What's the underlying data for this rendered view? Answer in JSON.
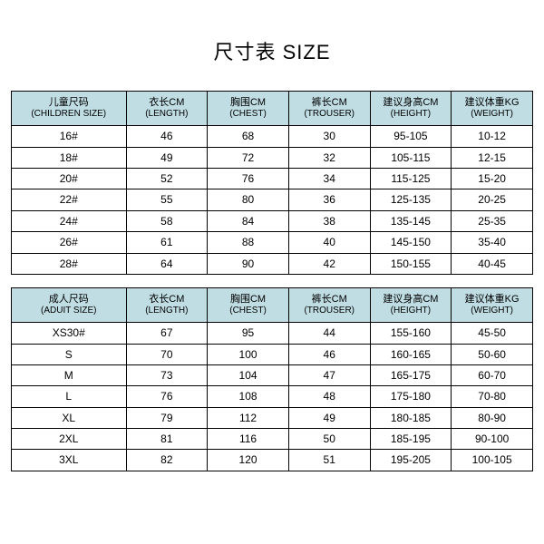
{
  "title": "尺寸表 SIZE",
  "colors": {
    "header_bg": "#bfdde3",
    "border": "#000000",
    "text": "#000000",
    "background": "#ffffff"
  },
  "children_table": {
    "headers": [
      {
        "cn": "儿童尺码",
        "en": "(CHILDREN SIZE)"
      },
      {
        "cn": "衣长CM",
        "en": "(LENGTH)"
      },
      {
        "cn": "胸围CM",
        "en": "(CHEST)"
      },
      {
        "cn": "裤长CM",
        "en": "(TROUSER)"
      },
      {
        "cn": "建议身高CM",
        "en": "(HEIGHT)"
      },
      {
        "cn": "建议体重KG",
        "en": "(WEIGHT)"
      }
    ],
    "rows": [
      [
        "16#",
        "46",
        "68",
        "30",
        "95-105",
        "10-12"
      ],
      [
        "18#",
        "49",
        "72",
        "32",
        "105-115",
        "12-15"
      ],
      [
        "20#",
        "52",
        "76",
        "34",
        "115-125",
        "15-20"
      ],
      [
        "22#",
        "55",
        "80",
        "36",
        "125-135",
        "20-25"
      ],
      [
        "24#",
        "58",
        "84",
        "38",
        "135-145",
        "25-35"
      ],
      [
        "26#",
        "61",
        "88",
        "40",
        "145-150",
        "35-40"
      ],
      [
        "28#",
        "64",
        "90",
        "42",
        "150-155",
        "40-45"
      ]
    ]
  },
  "adult_table": {
    "headers": [
      {
        "cn": "成人尺码",
        "en": "(ADUIT SIZE)"
      },
      {
        "cn": "衣长CM",
        "en": "(LENGTH)"
      },
      {
        "cn": "胸围CM",
        "en": "(CHEST)"
      },
      {
        "cn": "裤长CM",
        "en": "(TROUSER)"
      },
      {
        "cn": "建议身高CM",
        "en": "(HEIGHT)"
      },
      {
        "cn": "建议体重KG",
        "en": "(WEIGHT)"
      }
    ],
    "rows": [
      [
        "XS30#",
        "67",
        "95",
        "44",
        "155-160",
        "45-50"
      ],
      [
        "S",
        "70",
        "100",
        "46",
        "160-165",
        "50-60"
      ],
      [
        "M",
        "73",
        "104",
        "47",
        "165-175",
        "60-70"
      ],
      [
        "L",
        "76",
        "108",
        "48",
        "175-180",
        "70-80"
      ],
      [
        "XL",
        "79",
        "112",
        "49",
        "180-185",
        "80-90"
      ],
      [
        "2XL",
        "81",
        "116",
        "50",
        "185-195",
        "90-100"
      ],
      [
        "3XL",
        "82",
        "120",
        "51",
        "195-205",
        "100-105"
      ]
    ]
  }
}
